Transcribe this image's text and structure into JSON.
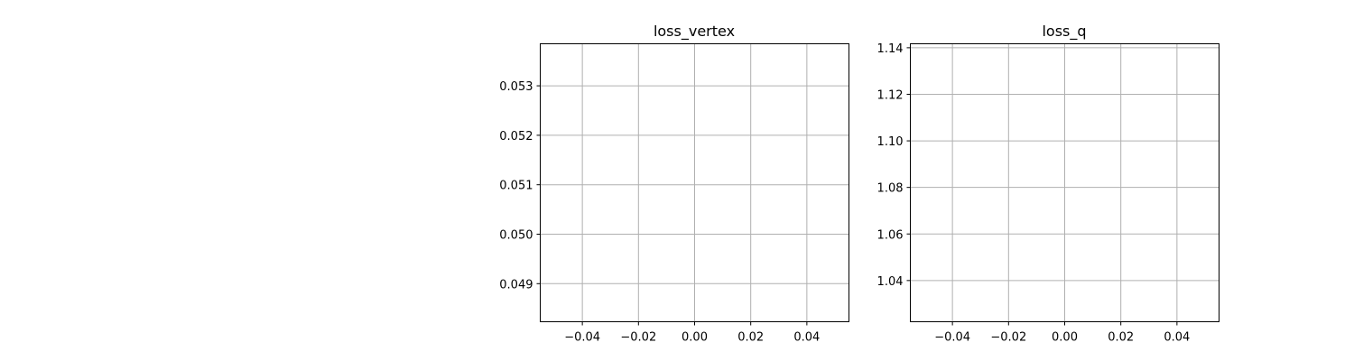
{
  "chart_data": [
    {
      "type": "line",
      "title": "loss_vertex",
      "xlabel": "",
      "ylabel": "",
      "xlim": [
        -0.055,
        0.055
      ],
      "ylim": [
        0.04823,
        0.05385
      ],
      "xticks": [
        -0.04,
        -0.02,
        0.0,
        0.02,
        0.04
      ],
      "xtick_labels": [
        "−0.04",
        "−0.02",
        "0.00",
        "0.02",
        "0.04"
      ],
      "yticks": [
        0.049,
        0.05,
        0.051,
        0.052,
        0.053
      ],
      "ytick_labels": [
        "0.049",
        "0.050",
        "0.051",
        "0.052",
        "0.053"
      ],
      "grid": true,
      "series": []
    },
    {
      "type": "line",
      "title": "loss_q",
      "xlabel": "",
      "ylabel": "",
      "xlim": [
        -0.055,
        0.055
      ],
      "ylim": [
        1.0223,
        1.1417
      ],
      "xticks": [
        -0.04,
        -0.02,
        0.0,
        0.02,
        0.04
      ],
      "xtick_labels": [
        "−0.04",
        "−0.02",
        "0.00",
        "0.02",
        "0.04"
      ],
      "yticks": [
        1.04,
        1.06,
        1.08,
        1.1,
        1.12,
        1.14
      ],
      "ytick_labels": [
        "1.04",
        "1.06",
        "1.08",
        "1.10",
        "1.12",
        "1.14"
      ],
      "grid": true,
      "series": []
    }
  ],
  "style": {
    "grid_color": "#b0b0b0",
    "axis_color": "#000000",
    "background": "#ffffff"
  }
}
